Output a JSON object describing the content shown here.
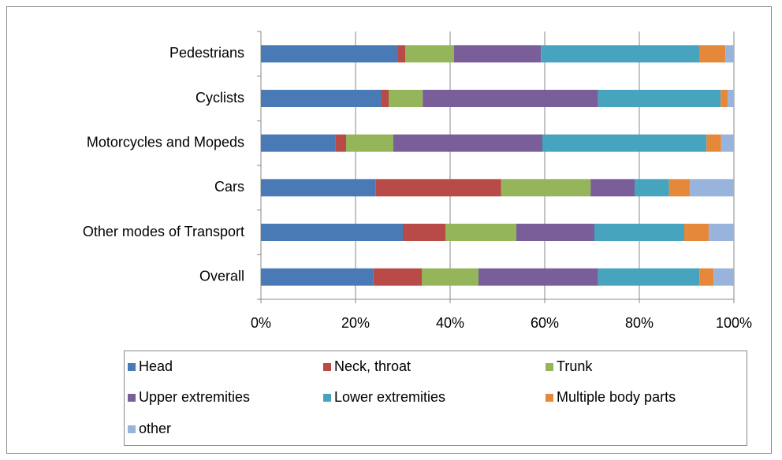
{
  "chart_data": {
    "type": "stacked-horizontal-bar",
    "categories": [
      "Pedestrians",
      "Cyclists",
      "Motorcycles and Mopeds",
      "Cars",
      "Other modes of Transport",
      "Overall"
    ],
    "series": [
      {
        "name": "Head",
        "color": "#4a7ab5",
        "values": [
          29.0,
          25.5,
          15.7,
          24.3,
          30.0,
          23.8
        ]
      },
      {
        "name": "Neck, throat",
        "color": "#b84a48",
        "values": [
          1.5,
          1.5,
          2.3,
          26.5,
          9.0,
          10.2
        ]
      },
      {
        "name": "Trunk",
        "color": "#95b55a",
        "values": [
          10.3,
          7.2,
          10.0,
          18.9,
          15.0,
          12.0
        ]
      },
      {
        "name": "Upper extremities",
        "color": "#7a5e99",
        "values": [
          18.4,
          37.1,
          31.5,
          9.3,
          16.5,
          25.3
        ]
      },
      {
        "name": "Lower extremities",
        "color": "#46a4bf",
        "values": [
          33.6,
          25.9,
          34.7,
          7.3,
          19.0,
          21.4
        ]
      },
      {
        "name": "Multiple body parts",
        "color": "#e6883a",
        "values": [
          5.4,
          1.5,
          3.1,
          4.4,
          5.2,
          3.0
        ]
      },
      {
        "name": "other",
        "color": "#98b4dc",
        "values": [
          1.8,
          1.3,
          2.7,
          9.3,
          5.3,
          4.3
        ]
      }
    ],
    "xlim": [
      0,
      100
    ],
    "xticks": [
      {
        "value": 0,
        "label": "0%"
      },
      {
        "value": 20,
        "label": "20%"
      },
      {
        "value": 40,
        "label": "40%"
      },
      {
        "value": 60,
        "label": "60%"
      },
      {
        "value": 80,
        "label": "80%"
      },
      {
        "value": 100,
        "label": "100%"
      }
    ],
    "grid": true,
    "legend": "bottom"
  }
}
